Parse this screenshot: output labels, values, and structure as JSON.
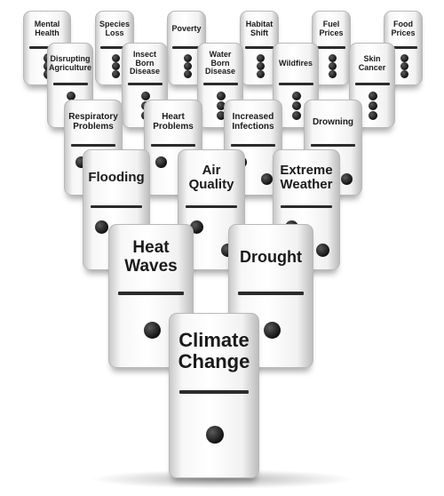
{
  "dominoes": [
    {
      "id": "mental-health",
      "label": "Mental Health",
      "pips": 3
    },
    {
      "id": "species-loss",
      "label": "Species Loss",
      "pips": 3
    },
    {
      "id": "poverty",
      "label": "Poverty",
      "pips": 3
    },
    {
      "id": "habitat-shift",
      "label": "Habitat Shift",
      "pips": 3
    },
    {
      "id": "fuel-prices",
      "label": "Fuel Prices",
      "pips": 3
    },
    {
      "id": "food-prices",
      "label": "Food Prices",
      "pips": 3
    },
    {
      "id": "disrupting-agriculture",
      "label": "Disrupting Agriculture",
      "pips": 3
    },
    {
      "id": "insect-born-disease",
      "label": "Insect Born Disease",
      "pips": 3
    },
    {
      "id": "water-born-disease",
      "label": "Water Born Disease",
      "pips": 3
    },
    {
      "id": "wildfires",
      "label": "Wildfires",
      "pips": 3
    },
    {
      "id": "skin-cancer",
      "label": "Skin Cancer",
      "pips": 3
    },
    {
      "id": "respiratory-problems",
      "label": "Respiratory Problems",
      "pips": 2
    },
    {
      "id": "heart-problems",
      "label": "Heart Problems",
      "pips": 2
    },
    {
      "id": "increased-infections",
      "label": "Increased Infections",
      "pips": 2
    },
    {
      "id": "drowning",
      "label": "Drowning",
      "pips": 2
    },
    {
      "id": "flooding",
      "label": "Flooding",
      "pips": 2
    },
    {
      "id": "air-quality",
      "label": "Air Quality",
      "pips": 2
    },
    {
      "id": "extreme-weather",
      "label": "Extreme Weather",
      "pips": 2
    },
    {
      "id": "heat-waves",
      "label": "Heat Waves",
      "pips": 1
    },
    {
      "id": "drought",
      "label": "Drought",
      "pips": 1
    },
    {
      "id": "climate-change",
      "label": "Climate Change",
      "pips": 1
    }
  ]
}
